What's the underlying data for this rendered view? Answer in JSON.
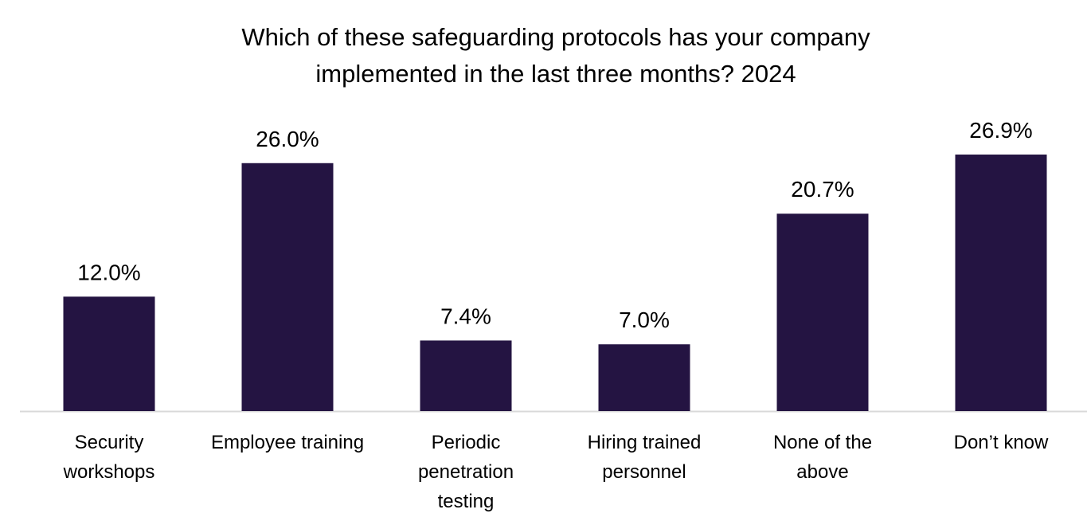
{
  "chart_data": {
    "type": "bar",
    "title_lines": [
      "Which of these safeguarding protocols has your company",
      "implemented in the last three months? 2024"
    ],
    "categories": [
      [
        "Security",
        "workshops"
      ],
      [
        "Employee training"
      ],
      [
        "Periodic",
        "penetration",
        "testing"
      ],
      [
        "Hiring trained",
        "personnel"
      ],
      [
        "None of the",
        "above"
      ],
      [
        "Don’t know"
      ]
    ],
    "values": [
      12.0,
      26.0,
      7.4,
      7.0,
      20.7,
      26.9
    ],
    "value_labels": [
      "12.0%",
      "26.0%",
      "7.4%",
      "7.0%",
      "20.7%",
      "26.9%"
    ],
    "xlabel": "",
    "ylabel": "",
    "ylim": [
      0,
      27
    ],
    "grid": false,
    "legend": "none",
    "bar_color": "#241442",
    "axis_color": "#d9d9d9"
  }
}
